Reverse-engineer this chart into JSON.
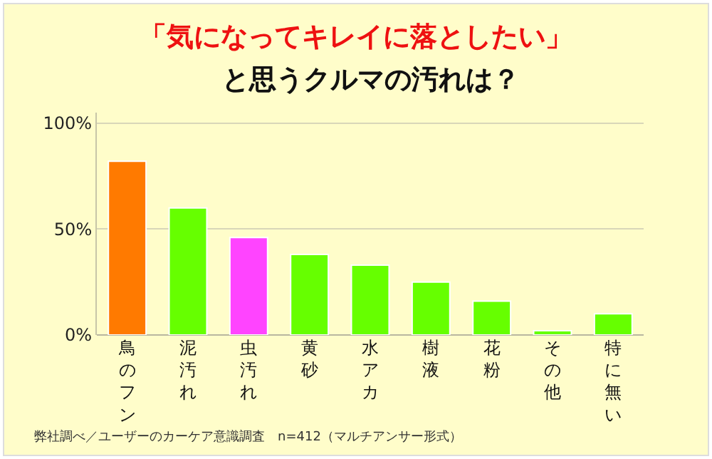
{
  "chart_data": {
    "type": "bar",
    "title": "「気になってキレイに落としたい」",
    "subtitle": "と思うクルマの汚れは？",
    "categories": [
      "鳥のフン",
      "泥汚れ",
      "虫汚れ",
      "黄砂",
      "水アカ",
      "樹液",
      "花粉",
      "その他",
      "特に無い"
    ],
    "values": [
      82,
      60,
      46,
      38,
      33,
      25,
      16,
      2,
      10
    ],
    "colors": [
      "#ff7a00",
      "#66ff00",
      "#ff44ff",
      "#66ff00",
      "#66ff00",
      "#66ff00",
      "#66ff00",
      "#66ff00",
      "#66ff00"
    ],
    "ylim": [
      0,
      105
    ],
    "yticks": [
      {
        "value": 0,
        "label": "0%"
      },
      {
        "value": 50,
        "label": "50%"
      },
      {
        "value": 100,
        "label": "100%"
      }
    ],
    "grid": "y",
    "annotations": [
      "弊社調べ／ユーザーのカーケア意識調査　n=412（マルチアンサー形式）"
    ]
  }
}
